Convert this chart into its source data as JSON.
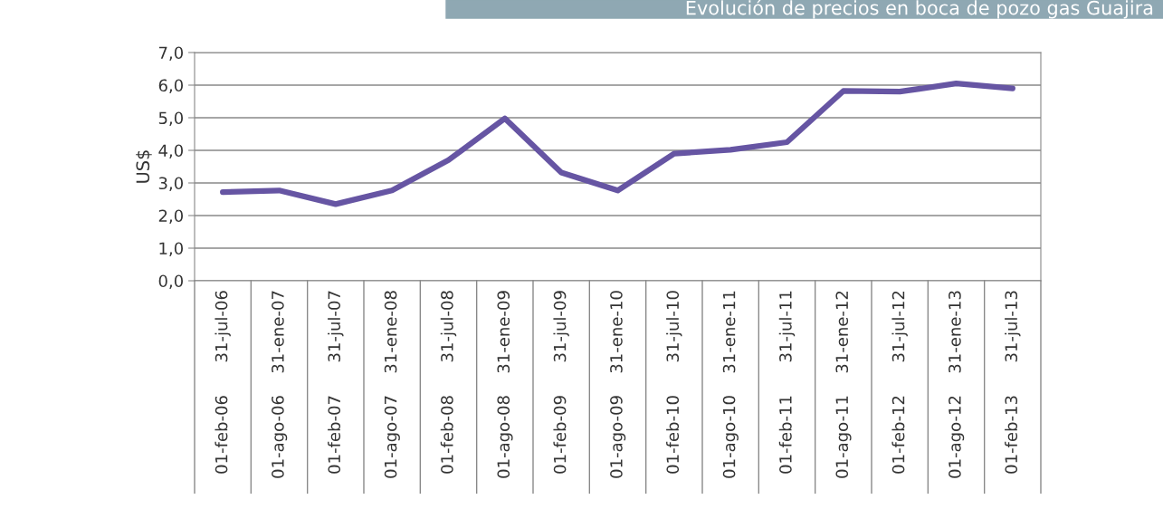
{
  "chart_data": {
    "type": "line",
    "title": "Evolución de precios en boca de pozo gas Guajira",
    "ylabel": "US$",
    "categories": [
      "31-jul-06\n01-feb-06",
      "31-ene-07\n01-ago-06",
      "31-jul-07\n01-feb-07",
      "31-ene-08\n01-ago-07",
      "31-jul-08\n01-feb-08",
      "31-ene-09\n01-ago-08",
      "31-jul-09\n01-feb-09",
      "31-ene-10\n01-ago-09",
      "31-jul-10\n01-feb-10",
      "31-ene-11\n01-ago-10",
      "31-jul-11\n01-feb-11",
      "31-ene-12\n01-ago-11",
      "31-jul-12\n01-feb-12",
      "31-ene-13\n01-ago-12",
      "31-jul-13\n01-feb-13"
    ],
    "series": [
      {
        "color": "#6655a3",
        "values": [
          2.72,
          2.77,
          2.35,
          2.77,
          3.7,
          4.98,
          3.32,
          2.77,
          3.9,
          4.02,
          4.25,
          5.82,
          5.8,
          6.05,
          5.9
        ]
      }
    ],
    "ylim": [
      0,
      7
    ],
    "yticks": [
      {
        "value": 0,
        "label": "0,0"
      },
      {
        "value": 1,
        "label": "1,0"
      },
      {
        "value": 2,
        "label": "2,0"
      },
      {
        "value": 3,
        "label": "3,0"
      },
      {
        "value": 4,
        "label": "4,0"
      },
      {
        "value": 5,
        "label": "5,0"
      },
      {
        "value": 6,
        "label": "6,0"
      },
      {
        "value": 7,
        "label": "7,0"
      }
    ],
    "grid": "y",
    "legend": false,
    "marker": "none",
    "line_style": "solid"
  }
}
